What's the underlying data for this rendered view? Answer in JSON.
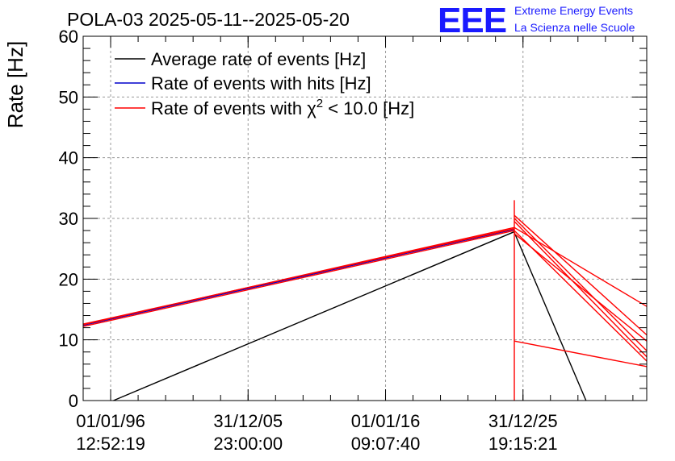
{
  "header": {
    "title": "POLA-03 2025-05-11--2025-05-20",
    "logo_text": "EEE",
    "logo_line1": "Extreme Energy Events",
    "logo_line2": "La Scienza nelle Scuole"
  },
  "chart_data": {
    "type": "line",
    "title": "POLA-03 2025-05-11--2025-05-20",
    "xlabel": "",
    "ylabel": "Rate [Hz]",
    "ylim": [
      0,
      60
    ],
    "yticks": [
      0,
      10,
      20,
      30,
      40,
      50,
      60
    ],
    "x_axis": "time",
    "xlim": [
      "1994-01-01",
      "2035-01-01"
    ],
    "xticks": [
      {
        "x": "1996-01-01",
        "line1": "01/01/96",
        "line2": "12:52:19"
      },
      {
        "x": "2005-12-31",
        "line1": "31/12/05",
        "line2": "23:00:00"
      },
      {
        "x": "2016-01-01",
        "line1": "01/01/16",
        "line2": "09:07:40"
      },
      {
        "x": "2025-12-31",
        "line1": "31/12/25",
        "line2": "19:15:21"
      }
    ],
    "grid": true,
    "legend_position": "top-left",
    "colors": {
      "avg": "#000000",
      "hits": "#0000cc",
      "chi2": "#ff0000"
    },
    "series": [
      {
        "name": "Average rate of events [Hz]",
        "color": "#000000",
        "points": [
          [
            "1996-03-15",
            0.0
          ],
          [
            "2025-05-11",
            27.8
          ],
          [
            "2025-05-20",
            27.6
          ],
          [
            "2030-08-01",
            0.0
          ]
        ]
      },
      {
        "name": "Rate of events with hits [Hz]",
        "color": "#0000cc",
        "points": [
          [
            "1994-01-01",
            12.4
          ],
          [
            "2025-05-11",
            28.2
          ]
        ]
      },
      {
        "name": "Rate of events with χ² < 10.0 [Hz]",
        "legend_main": "Rate of events with χ",
        "legend_sup": "2",
        "legend_tail": " < 10.0 [Hz]",
        "color": "#ff0000",
        "segments": [
          [
            [
              "1994-01-01",
              12.5
            ],
            [
              "2025-05-11",
              28.5
            ]
          ],
          [
            [
              "1994-01-01",
              12.2
            ],
            [
              "2025-05-11",
              28.0
            ]
          ],
          [
            [
              "1994-01-01",
              12.6
            ],
            [
              "2025-05-11",
              28.3
            ]
          ],
          [
            [
              "2025-05-15",
              0.0
            ],
            [
              "2025-05-15",
              33.0
            ]
          ],
          [
            [
              "2025-05-15",
              28.5
            ],
            [
              "2035-01-01",
              15.5
            ]
          ],
          [
            [
              "2025-05-15",
              30.5
            ],
            [
              "2035-01-01",
              10.8
            ]
          ],
          [
            [
              "2025-05-15",
              29.5
            ],
            [
              "2035-01-01",
              7.2
            ]
          ],
          [
            [
              "2025-05-15",
              28.0
            ],
            [
              "2035-01-01",
              6.5
            ]
          ],
          [
            [
              "2025-05-15",
              27.5
            ],
            [
              "2035-01-01",
              9.8
            ]
          ],
          [
            [
              "2025-05-15",
              9.8
            ],
            [
              "2035-01-01",
              5.6
            ]
          ],
          [
            [
              "2025-05-16",
              30.0
            ],
            [
              "2035-01-01",
              8.2
            ]
          ]
        ]
      }
    ]
  }
}
